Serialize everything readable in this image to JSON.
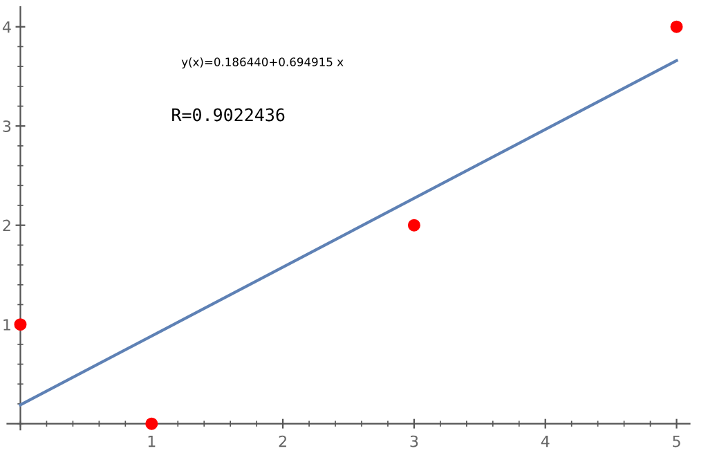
{
  "chart_data": {
    "type": "scatter",
    "annotations": [
      "y(x)=0.186440+0.694915 x",
      "R=0.9022436"
    ],
    "series": [
      {
        "color": "#ff0000",
        "x": [
          0,
          1,
          3,
          5
        ],
        "values": [
          1,
          0,
          2,
          4
        ],
        "marker": "circle"
      },
      {
        "type": "line",
        "color": "#5e81b5",
        "x": [
          0,
          5
        ],
        "values": [
          0.19,
          3.66
        ],
        "marker": "none",
        "line_style": "solid"
      }
    ],
    "xlim": [
      -0.1,
      5.1
    ],
    "ylim": [
      -0.06,
      4.2
    ],
    "xticks": [
      1,
      2,
      3,
      4,
      5
    ],
    "yticks": [
      1,
      2,
      3,
      4
    ],
    "grid": false,
    "legend": false
  }
}
